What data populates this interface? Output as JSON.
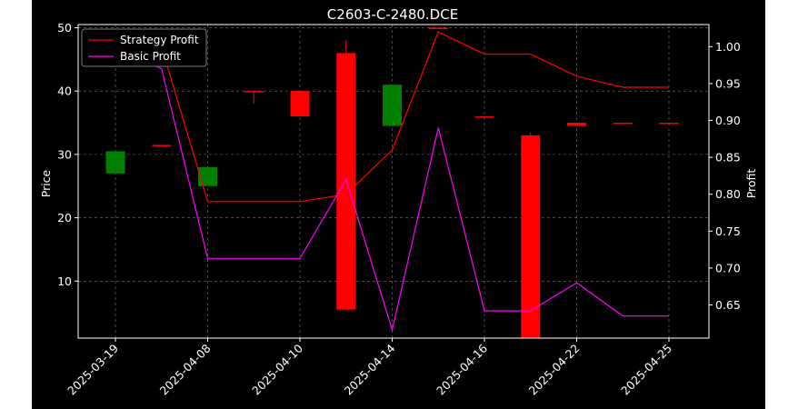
{
  "chart_data": {
    "type": "candlestick+line",
    "title": "C2603-C-2480.DCE",
    "xlabel": "",
    "ylabel": "Price",
    "y2label": "Profit",
    "ylim": [
      1,
      50.5
    ],
    "y2lim": [
      0.605,
      1.03
    ],
    "yticks": [
      10,
      20,
      30,
      40,
      50
    ],
    "y2ticks": [
      0.65,
      0.7,
      0.75,
      0.8,
      0.85,
      0.9,
      0.95,
      1.0
    ],
    "y2tick_labels": [
      "0.65",
      "0.70",
      "0.75",
      "0.80",
      "0.85",
      "0.90",
      "0.95",
      "1.00"
    ],
    "grid": true,
    "x_tick_labels": [
      "2025-03-19",
      "2025-04-08",
      "2025-04-10",
      "2025-04-14",
      "2025-04-16",
      "2025-04-22",
      "2025-04-25"
    ],
    "x_tick_indices": [
      0,
      2,
      4,
      6,
      8,
      10,
      12
    ],
    "candles": [
      {
        "i": 0,
        "open": 27.0,
        "close": 30.5,
        "high": 30.5,
        "low": 27.0,
        "color": "green"
      },
      {
        "i": 1,
        "open": 31.5,
        "close": 31.5,
        "high": 31.5,
        "low": 31.5,
        "color": "red"
      },
      {
        "i": 2,
        "open": 25.0,
        "close": 28.0,
        "high": 28.0,
        "low": 25.0,
        "color": "green"
      },
      {
        "i": 3,
        "open": 40.0,
        "close": 40.0,
        "high": 40.0,
        "low": 38.0,
        "color": "red"
      },
      {
        "i": 4,
        "open": 40.0,
        "close": 36.0,
        "high": 40.0,
        "low": 36.0,
        "color": "red"
      },
      {
        "i": 5,
        "open": 46.0,
        "close": 5.5,
        "high": 48.0,
        "low": 5.5,
        "color": "red"
      },
      {
        "i": 6,
        "open": 34.5,
        "close": 41.0,
        "high": 41.0,
        "low": 34.5,
        "color": "green"
      },
      {
        "i": 7,
        "open": 50.0,
        "close": 50.0,
        "high": 50.0,
        "low": 50.0,
        "color": "red"
      },
      {
        "i": 8,
        "open": 36.0,
        "close": 36.0,
        "high": 36.0,
        "low": 36.0,
        "color": "red"
      },
      {
        "i": 9,
        "open": 33.0,
        "close": 1.0,
        "high": 33.5,
        "low": 1.0,
        "color": "red"
      },
      {
        "i": 10,
        "open": 35.0,
        "close": 34.5,
        "high": 35.0,
        "low": 34.5,
        "color": "red"
      },
      {
        "i": 11,
        "open": 35.0,
        "close": 35.0,
        "high": 35.0,
        "low": 35.0,
        "color": "red"
      },
      {
        "i": 12,
        "open": 35.0,
        "close": 35.0,
        "high": 35.0,
        "low": 35.0,
        "color": "red"
      }
    ],
    "series": [
      {
        "name": "Strategy Profit",
        "color": "#ff0000",
        "axis": "right",
        "x": [
          0,
          1,
          2,
          3,
          4,
          5,
          6,
          7,
          8,
          9,
          10,
          11,
          12
        ],
        "values": [
          1.0,
          1.0,
          0.79,
          0.79,
          0.79,
          0.8,
          0.86,
          1.02,
          0.99,
          0.99,
          0.96,
          0.945,
          0.945
        ]
      },
      {
        "name": "Basic Profit",
        "color": "#ff00ff",
        "axis": "right",
        "x": [
          0,
          1,
          2,
          3,
          4,
          5,
          6,
          7,
          8,
          9,
          10,
          11,
          12
        ],
        "values": [
          1.0,
          0.97,
          0.713,
          0.713,
          0.713,
          0.82,
          0.616,
          0.89,
          0.642,
          0.642,
          0.68,
          0.635,
          0.635
        ]
      }
    ],
    "legend_position": "top-left"
  }
}
